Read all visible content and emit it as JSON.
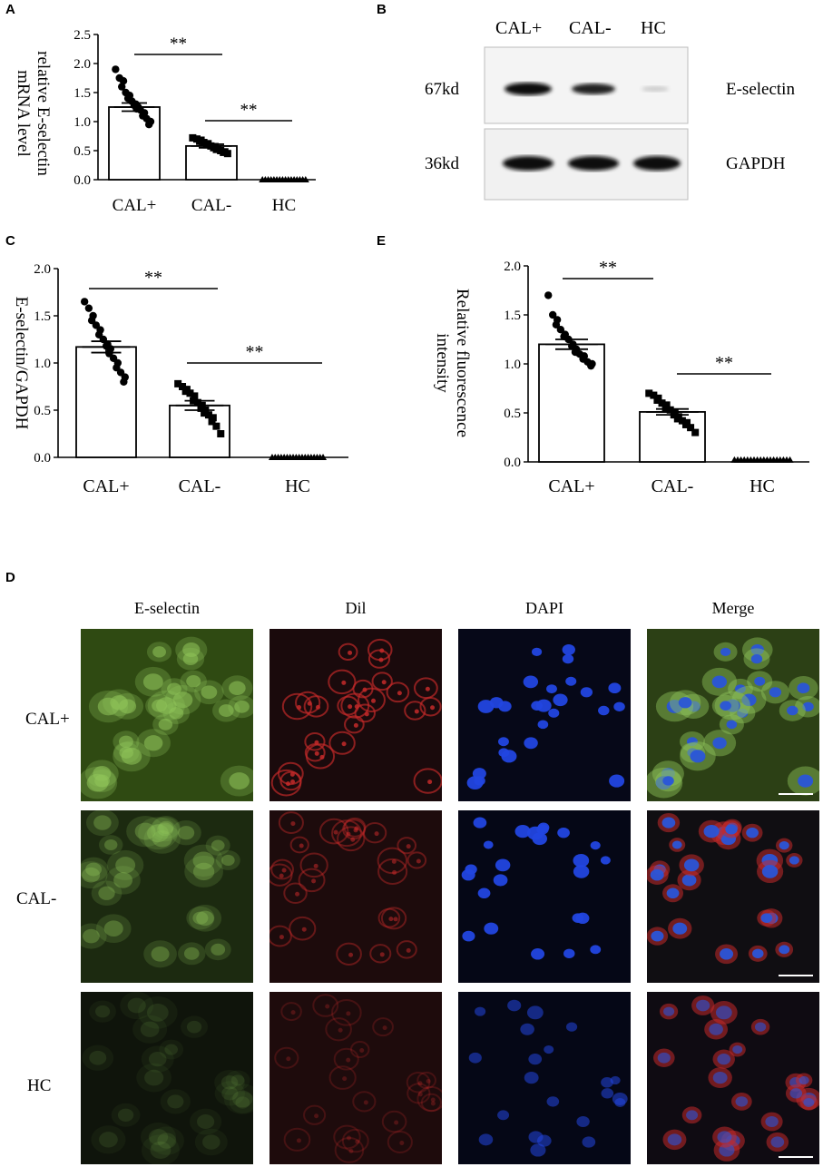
{
  "panels": {
    "A": {
      "letter": "A",
      "ylabel_line1": "relative E-selectin",
      "ylabel_line2": "mRNA level",
      "significance": [
        "**",
        "**"
      ]
    },
    "B": {
      "letter": "B",
      "lanes": [
        "CAL+",
        "CAL-",
        "HC"
      ],
      "rows": [
        {
          "size": "67kd",
          "protein": "E-selectin"
        },
        {
          "size": "36kd",
          "protein": "GAPDH"
        }
      ]
    },
    "C": {
      "letter": "C",
      "ylabel": "E-selectin/GAPDH",
      "significance": [
        "**",
        "**"
      ]
    },
    "E": {
      "letter": "E",
      "ylabel_line1": "Relative fluorescence",
      "ylabel_line2": "intensity",
      "significance": [
        "**",
        "**"
      ]
    },
    "D": {
      "letter": "D",
      "columns": [
        "E-selectin",
        "Dil",
        "DAPI",
        "Merge"
      ],
      "rows": [
        "CAL+",
        "CAL-",
        "HC"
      ]
    }
  },
  "chart_data": [
    {
      "id": "A",
      "type": "bar",
      "categories": [
        "CAL+",
        "CAL-",
        "HC"
      ],
      "values": [
        1.25,
        0.58,
        0.0
      ],
      "error_sem": [
        0.07,
        0.03,
        0.0
      ],
      "points": [
        [
          1.9,
          1.75,
          1.7,
          1.6,
          1.5,
          1.45,
          1.4,
          1.35,
          1.3,
          1.28,
          1.25,
          1.22,
          1.2,
          1.15,
          1.1,
          1.05,
          1.0,
          0.95
        ],
        [
          0.72,
          0.7,
          0.68,
          0.66,
          0.64,
          0.62,
          0.6,
          0.58,
          0.57,
          0.55,
          0.53,
          0.52,
          0.5,
          0.48,
          0.47,
          0.45
        ],
        [
          0,
          0,
          0,
          0,
          0,
          0,
          0,
          0,
          0,
          0,
          0,
          0,
          0,
          0,
          0,
          0
        ]
      ],
      "markers": [
        "circle",
        "square",
        "triangle"
      ],
      "ylim": [
        0,
        2.5
      ],
      "yticks": [
        "0.0",
        "0.5",
        "1.0",
        "1.5",
        "2.0",
        "2.5"
      ],
      "sig_pairs": [
        [
          0,
          1
        ],
        [
          1,
          2
        ]
      ]
    },
    {
      "id": "C",
      "type": "bar",
      "categories": [
        "CAL+",
        "CAL-",
        "HC"
      ],
      "values": [
        1.17,
        0.55,
        0.0
      ],
      "error_sem": [
        0.06,
        0.05,
        0.0
      ],
      "points": [
        [
          1.65,
          1.58,
          1.5,
          1.45,
          1.4,
          1.35,
          1.3,
          1.25,
          1.2,
          1.18,
          1.15,
          1.1,
          1.05,
          1.0,
          0.95,
          0.9,
          0.85,
          0.8
        ],
        [
          0.78,
          0.75,
          0.72,
          0.7,
          0.68,
          0.65,
          0.6,
          0.58,
          0.55,
          0.52,
          0.5,
          0.47,
          0.45,
          0.42,
          0.38,
          0.33,
          0.25
        ],
        [
          0,
          0,
          0,
          0,
          0,
          0,
          0,
          0,
          0,
          0,
          0,
          0,
          0,
          0,
          0,
          0,
          0,
          0
        ]
      ],
      "markers": [
        "circle",
        "square",
        "triangle"
      ],
      "ylim": [
        0,
        2.0
      ],
      "yticks": [
        "0.0",
        "0.5",
        "1.0",
        "1.5",
        "2.0"
      ],
      "sig_pairs": [
        [
          0,
          1
        ],
        [
          1,
          2
        ]
      ]
    },
    {
      "id": "E",
      "type": "bar",
      "categories": [
        "CAL+",
        "CAL-",
        "HC"
      ],
      "values": [
        1.2,
        0.51,
        0.02
      ],
      "error_sem": [
        0.05,
        0.03,
        0.0
      ],
      "points": [
        [
          1.7,
          1.5,
          1.45,
          1.4,
          1.35,
          1.3,
          1.28,
          1.25,
          1.2,
          1.18,
          1.15,
          1.12,
          1.1,
          1.08,
          1.05,
          1.02,
          1.0,
          0.98
        ],
        [
          0.7,
          0.68,
          0.65,
          0.63,
          0.6,
          0.58,
          0.55,
          0.53,
          0.5,
          0.48,
          0.46,
          0.44,
          0.42,
          0.4,
          0.38,
          0.35,
          0.3
        ],
        [
          0.02,
          0.02,
          0.02,
          0.02,
          0.02,
          0.02,
          0.02,
          0.02,
          0.02,
          0.02,
          0.02,
          0.02,
          0.02,
          0.02,
          0.02,
          0.02,
          0.02,
          0.02
        ]
      ],
      "markers": [
        "circle",
        "square",
        "triangle"
      ],
      "ylim": [
        0,
        2.0
      ],
      "yticks": [
        "0.0",
        "0.5",
        "1.0",
        "1.5",
        "2.0"
      ],
      "sig_pairs": [
        [
          0,
          1
        ],
        [
          1,
          2
        ]
      ]
    }
  ],
  "fluo_colors": {
    "E-selectin": [
      "#2f4a12",
      "#1c2a10",
      "#0f140b"
    ],
    "Dil": [
      "#1a0a0c",
      "#1d0b0c",
      "#1e0b0c"
    ],
    "DAPI": [
      "#060818",
      "#050716",
      "#050716"
    ],
    "Merge": [
      "#2c4015",
      "#100e12",
      "#0f0b12"
    ]
  },
  "cell_colors": {
    "E-selectin": "#8fc45a",
    "Dil": "#c42a2a",
    "DAPI": "#2246e0",
    "Merge": "#2a55d8"
  }
}
